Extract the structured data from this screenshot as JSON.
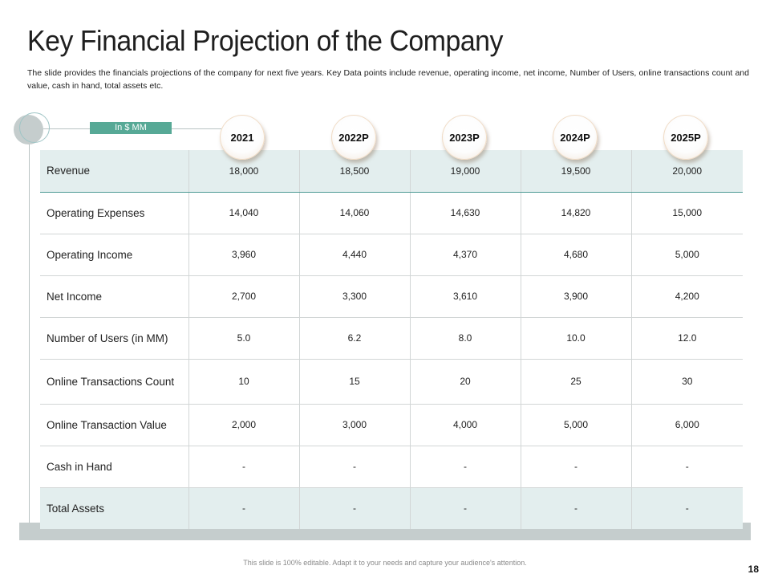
{
  "slide": {
    "title": "Key Financial Projection of the Company",
    "subtitle": "The slide provides the financials projections of the company for next five years. Key Data points include revenue, operating income, net income, Number of Users, online transactions count and value, cash in hand, total assets etc.",
    "unit_label": "In $ MM",
    "footer": "This slide is 100% editable. Adapt it to your needs and capture your audience's attention.",
    "page_number": "18"
  },
  "years": [
    "2021",
    "2022P",
    "2023P",
    "2024P",
    "2025P"
  ],
  "rows": [
    {
      "label": "Revenue",
      "values": [
        "18,000",
        "18,500",
        "19,000",
        "19,500",
        "20,000"
      ]
    },
    {
      "label": "Operating Expenses",
      "values": [
        "14,040",
        "14,060",
        "14,630",
        "14,820",
        "15,000"
      ]
    },
    {
      "label": "Operating Income",
      "values": [
        "3,960",
        "4,440",
        "4,370",
        "4,680",
        "5,000"
      ]
    },
    {
      "label": "Net Income",
      "values": [
        "2,700",
        "3,300",
        "3,610",
        "3,900",
        "4,200"
      ]
    },
    {
      "label": "Number of Users (in MM)",
      "values": [
        "5.0",
        "6.2",
        "8.0",
        "10.0",
        "12.0"
      ]
    },
    {
      "label": "Online Transactions Count",
      "values": [
        "10",
        "15",
        "20",
        "25",
        "30"
      ]
    },
    {
      "label": "Online Transaction Value",
      "values": [
        "2,000",
        "3,000",
        "4,000",
        "5,000",
        "6,000"
      ]
    },
    {
      "label": "Cash in Hand",
      "values": [
        "-",
        "-",
        "-",
        "-",
        "-"
      ]
    },
    {
      "label": "Total Assets",
      "values": [
        "-",
        "-",
        "-",
        "-",
        "-"
      ]
    }
  ],
  "colors": {
    "accent": "#57a996",
    "shaded_row": "#e3eeee",
    "band": "#c5cdcd"
  }
}
